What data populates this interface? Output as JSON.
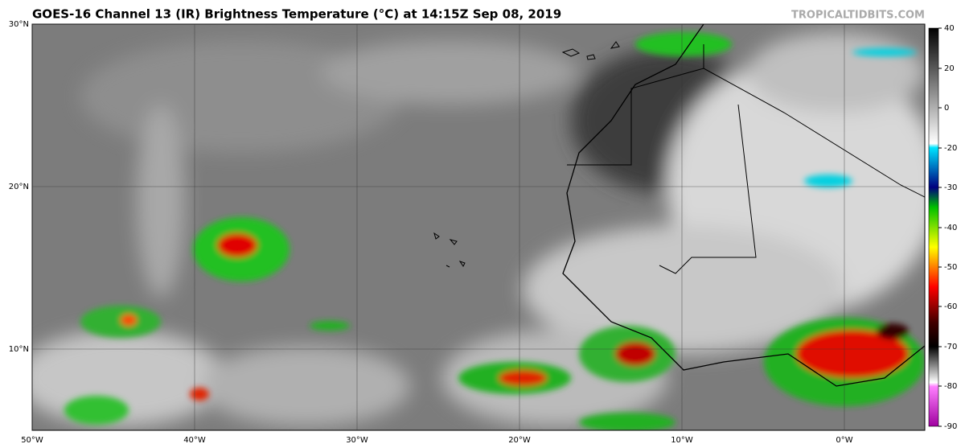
{
  "header": {
    "title": "GOES-16 Channel 13 (IR) Brightness Temperature (°C) at 14:15Z Sep 08, 2019",
    "credit": "TROPICALTIDBITS.COM"
  },
  "map": {
    "lat_labels": [
      "30°N",
      "20°N",
      "10°N"
    ],
    "lon_labels": [
      "50°W",
      "40°W",
      "30°W",
      "20°W",
      "10°W",
      "0°W"
    ]
  },
  "colorbar": {
    "ticks": [
      "40",
      "20",
      "0",
      "-20",
      "-30",
      "-40",
      "-50",
      "-60",
      "-70",
      "-80",
      "-90"
    ]
  }
}
